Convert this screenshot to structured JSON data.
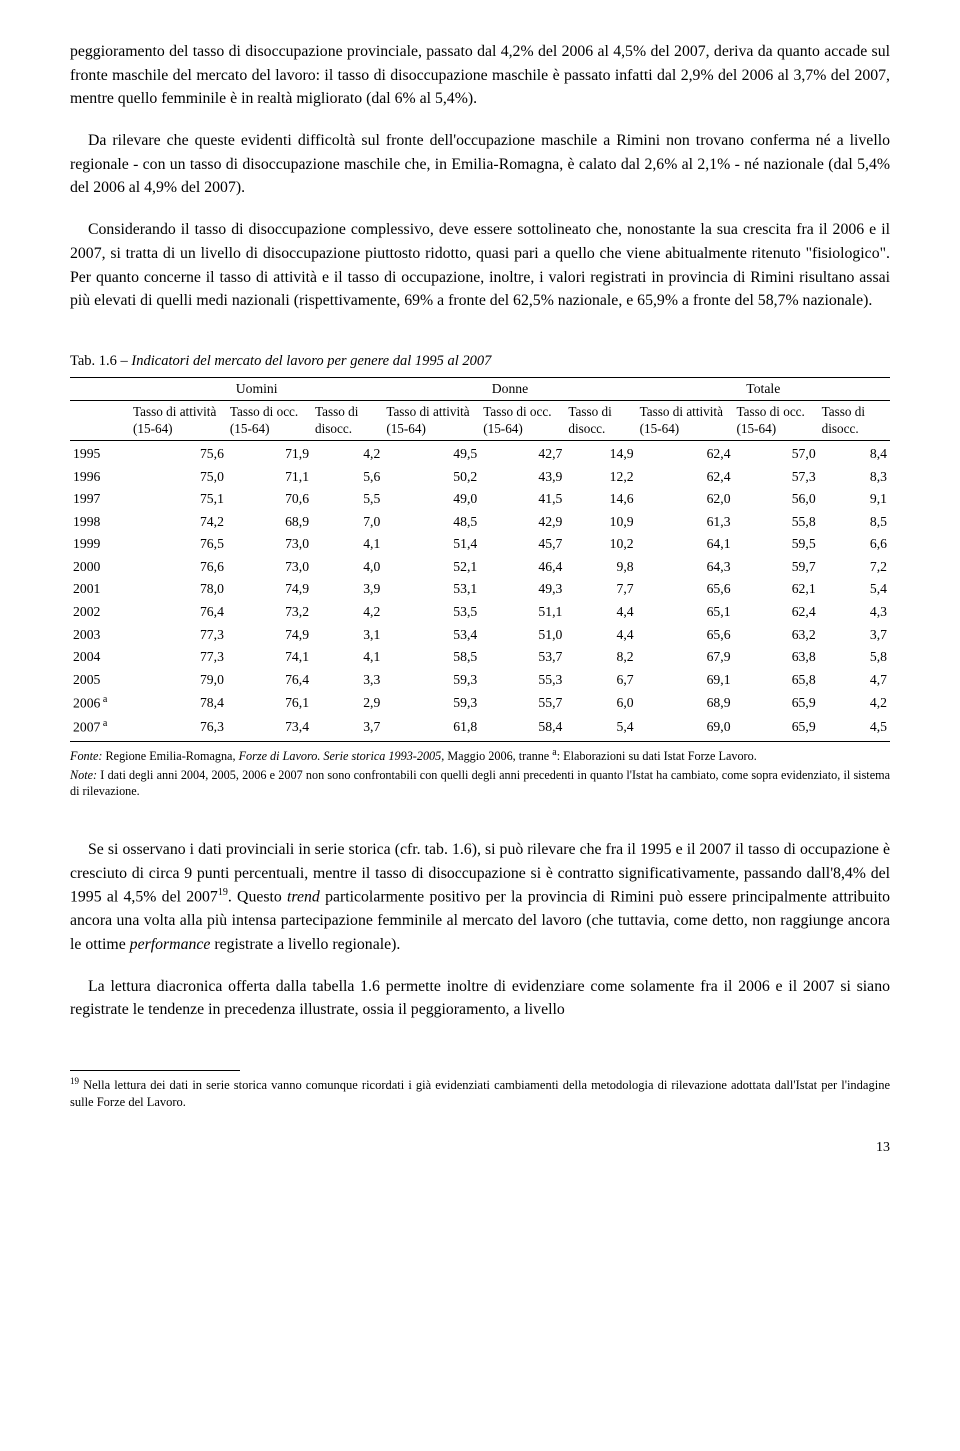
{
  "paragraphs": {
    "p1": "peggioramento del tasso di disoccupazione provinciale, passato dal 4,2% del 2006 al 4,5% del 2007, deriva da quanto accade sul fronte maschile del mercato del lavoro: il tasso di disoccupazione maschile è passato infatti dal 2,9% del 2006 al 3,7% del 2007, mentre quello femminile è in realtà migliorato (dal 6% al 5,4%).",
    "p2": "Da rilevare che queste evidenti difficoltà sul fronte dell'occupazione maschile a Rimini non trovano conferma né a livello regionale - con un tasso di disoccupazione maschile che, in Emilia-Romagna, è calato dal 2,6% al 2,1% - né nazionale (dal 5,4% del 2006 al 4,9% del 2007).",
    "p3a": "Considerando il tasso di disoccupazione complessivo, deve essere sottolineato che, nonostante la sua crescita fra il 2006 e il 2007, si tratta di un livello di disoccupazione piuttosto ridotto, quasi pari a quello che viene abitualmente ritenuto \"fisiologico\". Per quanto concerne il tasso di attività e il tasso di occupazione, inoltre, i valori registrati in provincia di Rimini risultano assai più elevati di quelli medi nazionali (rispettivamente, 69% a fronte del 62,5% nazionale, e 65,9% a fronte del 58,7% nazionale).",
    "p4a": "Se si osservano i dati provinciali in serie storica (cfr. tab. 1.6), si può rilevare che fra il 1995 e il 2007 il tasso di occupazione è cresciuto di circa 9 punti percentuali, mentre il tasso di disoccupazione si è contratto significativamente, passando dall'8,4% del 1995 al 4,5% del 2007",
    "p4b": ". Questo ",
    "p4c": " particolarmente positivo per la provincia di Rimini può essere principalmente attribuito ancora una volta alla più intensa partecipazione femminile al mercato del lavoro (che tuttavia, come detto, non raggiunge ancora le ottime ",
    "p4d": " registrate a livello regionale).",
    "p5": "La lettura diacronica offerta dalla tabella 1.6 permette inoltre di evidenziare come solamente fra il 2006 e il 2007 si siano registrate le tendenze in precedenza illustrate, ossia il peggioramento, a livello"
  },
  "words": {
    "trend": "trend",
    "performance": "performance"
  },
  "table": {
    "caption_prefix": "Tab. 1.6 – ",
    "caption_italic": "Indicatori del mercato del lavoro per genere dal 1995 al 2007",
    "group_headers": [
      "Uomini",
      "Donne",
      "Totale"
    ],
    "col_headers": [
      "Tasso di attività (15-64)",
      "Tasso di occ. (15-64)",
      "Tasso di disocc.",
      "Tasso di attività (15-64)",
      "Tasso di occ. (15-64)",
      "Tasso di disocc.",
      "Tasso di attività (15-64)",
      "Tasso di occ. (15-64)",
      "Tasso di disocc."
    ],
    "rows": [
      {
        "year": "1995",
        "sup": "",
        "v": [
          "75,6",
          "71,9",
          "4,2",
          "49,5",
          "42,7",
          "14,9",
          "62,4",
          "57,0",
          "8,4"
        ]
      },
      {
        "year": "1996",
        "sup": "",
        "v": [
          "75,0",
          "71,1",
          "5,6",
          "50,2",
          "43,9",
          "12,2",
          "62,4",
          "57,3",
          "8,3"
        ]
      },
      {
        "year": "1997",
        "sup": "",
        "v": [
          "75,1",
          "70,6",
          "5,5",
          "49,0",
          "41,5",
          "14,6",
          "62,0",
          "56,0",
          "9,1"
        ]
      },
      {
        "year": "1998",
        "sup": "",
        "v": [
          "74,2",
          "68,9",
          "7,0",
          "48,5",
          "42,9",
          "10,9",
          "61,3",
          "55,8",
          "8,5"
        ]
      },
      {
        "year": "1999",
        "sup": "",
        "v": [
          "76,5",
          "73,0",
          "4,1",
          "51,4",
          "45,7",
          "10,2",
          "64,1",
          "59,5",
          "6,6"
        ]
      },
      {
        "year": "2000",
        "sup": "",
        "v": [
          "76,6",
          "73,0",
          "4,0",
          "52,1",
          "46,4",
          "9,8",
          "64,3",
          "59,7",
          "7,2"
        ]
      },
      {
        "year": "2001",
        "sup": "",
        "v": [
          "78,0",
          "74,9",
          "3,9",
          "53,1",
          "49,3",
          "7,7",
          "65,6",
          "62,1",
          "5,4"
        ]
      },
      {
        "year": "2002",
        "sup": "",
        "v": [
          "76,4",
          "73,2",
          "4,2",
          "53,5",
          "51,1",
          "4,4",
          "65,1",
          "62,4",
          "4,3"
        ]
      },
      {
        "year": "2003",
        "sup": "",
        "v": [
          "77,3",
          "74,9",
          "3,1",
          "53,4",
          "51,0",
          "4,4",
          "65,6",
          "63,2",
          "3,7"
        ]
      },
      {
        "year": "2004",
        "sup": "",
        "v": [
          "77,3",
          "74,1",
          "4,1",
          "58,5",
          "53,7",
          "8,2",
          "67,9",
          "63,8",
          "5,8"
        ]
      },
      {
        "year": "2005",
        "sup": "",
        "v": [
          "79,0",
          "76,4",
          "3,3",
          "59,3",
          "55,3",
          "6,7",
          "69,1",
          "65,8",
          "4,7"
        ]
      },
      {
        "year": "2006",
        "sup": "a",
        "v": [
          "78,4",
          "76,1",
          "2,9",
          "59,3",
          "55,7",
          "6,0",
          "68,9",
          "65,9",
          "4,2"
        ]
      },
      {
        "year": "2007",
        "sup": "a",
        "v": [
          "76,3",
          "73,4",
          "3,7",
          "61,8",
          "58,4",
          "5,4",
          "69,0",
          "65,9",
          "4,5"
        ]
      }
    ],
    "fonte_label": "Fonte:",
    "fonte_text_a": " Regione Emilia-Romagna, ",
    "fonte_italic1": "Forze di Lavoro. Serie storica 1993-2005,",
    "fonte_text_b": " Maggio 2006, tranne ",
    "fonte_sup": "a",
    "fonte_text_c": ": Elaborazioni su dati Istat Forze Lavoro.",
    "note_label": "Note:",
    "note_text": " I dati degli anni 2004, 2005, 2006 e 2007 non sono confrontabili con quelli degli anni precedenti in quanto l'Istat ha cambiato, come sopra evidenziato, il sistema di rilevazione."
  },
  "footnote": {
    "num": "19",
    "text": " Nella lettura dei dati in serie storica vanno comunque ricordati i già evidenziati cambiamenti della metodologia di rilevazione adottata dall'Istat per l'indagine sulle Forze del Lavoro."
  },
  "pagenum": "13"
}
